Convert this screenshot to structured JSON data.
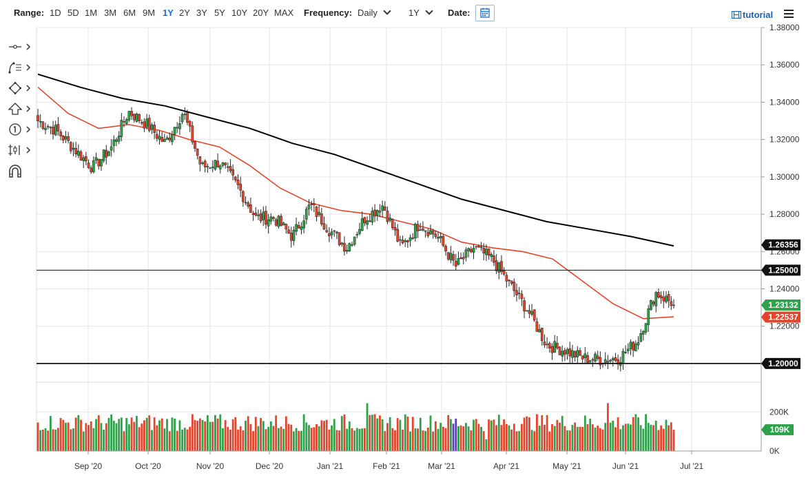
{
  "toolbar": {
    "range_label": "Range:",
    "ranges": [
      "1D",
      "5D",
      "1M",
      "3M",
      "6M",
      "9M",
      "1Y",
      "2Y",
      "3Y",
      "5Y",
      "10Y",
      "20Y",
      "MAX"
    ],
    "active_range": "1Y",
    "frequency_label": "Frequency:",
    "frequency_value": "Daily",
    "period_value": "1Y",
    "date_label": "Date:",
    "tutorial_label": "tutorial"
  },
  "colors": {
    "up": "#2ca24a",
    "down": "#e4442b",
    "ma_short": "#e4442b",
    "ma_long": "#000000",
    "accent": "#1c6ecf",
    "volume_highlight": "#5b3fb8"
  },
  "side_tools": [
    "crosshair-icon",
    "fibonacci-icon",
    "shape-icon",
    "arrow-icon",
    "annotation-number-icon",
    "measure-icon",
    "magnet-icon"
  ],
  "chart_data": {
    "type": "candlestick",
    "frequency": "Daily",
    "ylim": [
      1.19,
      1.38
    ],
    "y_ticks": [
      1.2,
      1.22,
      1.24,
      1.26,
      1.28,
      1.3,
      1.32,
      1.34,
      1.36,
      1.38
    ],
    "y_tick_labels": [
      "1.20000",
      "1.22000",
      "1.24000",
      "1.26000",
      "1.28000",
      "1.30000",
      "1.32000",
      "1.34000",
      "1.36000",
      "1.38000"
    ],
    "x_tick_labels": [
      "Sep '20",
      "Oct '20",
      "Nov '20",
      "Dec '20",
      "Jan '21",
      "Feb '21",
      "Mar '21",
      "Apr '21",
      "May '21",
      "Jun '21",
      "Jul '21"
    ],
    "anchors": [
      1.33,
      1.325,
      1.315,
      1.305,
      1.315,
      1.335,
      1.328,
      1.318,
      1.335,
      1.305,
      1.308,
      1.295,
      1.278,
      1.278,
      1.268,
      1.285,
      1.272,
      1.262,
      1.278,
      1.285,
      1.262,
      1.275,
      1.268,
      1.252,
      1.262,
      1.256,
      1.242,
      1.228,
      1.21,
      1.207,
      1.203,
      1.202,
      1.203,
      1.212,
      1.238,
      1.232
    ],
    "last_close": 1.23132,
    "horizontal_lines": [
      {
        "value": 1.25,
        "label": "1.25000"
      },
      {
        "value": 1.2,
        "label": "1.20000"
      }
    ],
    "moving_averages": [
      {
        "key": "ma_long",
        "last_value": 1.26356,
        "label": "1.26356",
        "points": [
          1.355,
          1.348,
          1.342,
          1.338,
          1.332,
          1.326,
          1.318,
          1.312,
          1.304,
          1.296,
          1.288,
          1.282,
          1.276,
          1.272,
          1.268,
          1.263
        ]
      },
      {
        "key": "ma_short",
        "last_value": 1.22537,
        "label": "1.22537",
        "points": [
          1.348,
          1.334,
          1.326,
          1.328,
          1.325,
          1.32,
          1.316,
          1.306,
          1.294,
          1.286,
          1.282,
          1.28,
          1.276,
          1.272,
          1.265,
          1.262,
          1.26,
          1.256,
          1.244,
          1.232,
          1.224,
          1.225
        ]
      }
    ],
    "last_price_label": "1.23132",
    "volume": {
      "ylim": [
        0,
        300000
      ],
      "tick_labels": [
        "200K",
        "0K"
      ],
      "last_label": "109K",
      "last_value": 109000
    }
  }
}
